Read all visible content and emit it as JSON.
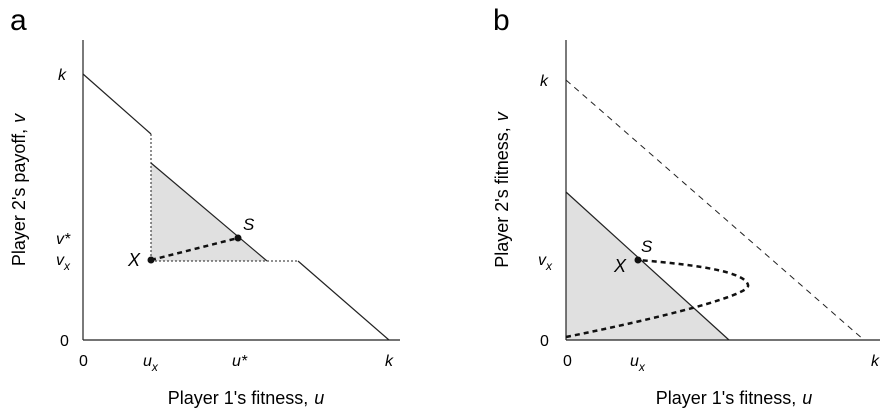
{
  "panel_a": {
    "letter": "a",
    "ylabel_main": "Player 2's payoff,",
    "ylabel_var": "v",
    "xlabel_main": "Player 1's fitness,",
    "xlabel_var": "u",
    "y_ticks": {
      "k": "k",
      "v_star": "v*",
      "v_x_base": "v",
      "v_x_sub": "x",
      "zero": "0"
    },
    "x_ticks": {
      "zero": "0",
      "u_x_base": "u",
      "u_x_sub": "x",
      "u_star": "u*",
      "k": "k"
    },
    "point_x": "X",
    "point_s": "S",
    "colors": {
      "region_fill": "#e0e0e0",
      "line": "#222222"
    }
  },
  "panel_b": {
    "letter": "b",
    "ylabel_main": "Player 2's fitness,",
    "ylabel_var": "v",
    "xlabel_main": "Player 1's fitness,",
    "xlabel_var": "u",
    "y_ticks": {
      "k": "k",
      "v_x_base": "v",
      "v_x_sub": "x",
      "zero": "0"
    },
    "x_ticks": {
      "zero": "0",
      "u_x_base": "u",
      "u_x_sub": "x",
      "k": "k"
    },
    "point_x": "X",
    "point_s": "S",
    "colors": {
      "region_fill": "#e0e0e0",
      "line": "#222222"
    }
  }
}
